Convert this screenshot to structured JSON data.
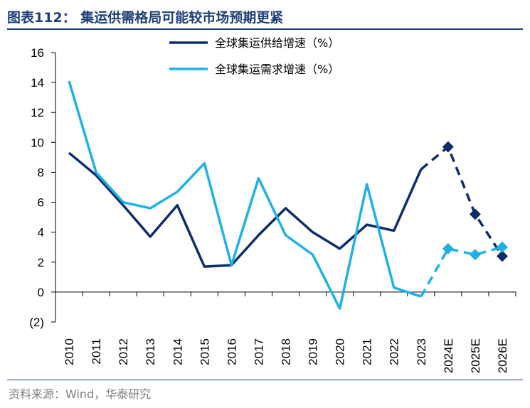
{
  "header": {
    "title": "图表112： 集运供需格局可能较市场预期更紧"
  },
  "footer": {
    "source": "资料来源：Wind，华泰研究"
  },
  "colors": {
    "supply": "#0e2d6b",
    "demand": "#1fb1e6",
    "rule": "#1f3f7a"
  },
  "chart_data": {
    "type": "line",
    "categories": [
      "2010",
      "2011",
      "2012",
      "2013",
      "2014",
      "2015",
      "2016",
      "2017",
      "2018",
      "2019",
      "2020",
      "2021",
      "2022",
      "2023",
      "2024E",
      "2025E",
      "2026E"
    ],
    "ylim": [
      -2,
      16
    ],
    "yticks": [
      -2,
      0,
      2,
      4,
      6,
      8,
      10,
      12,
      14,
      16
    ],
    "ytick_labels": [
      "(2)",
      "0",
      "2",
      "4",
      "6",
      "8",
      "10",
      "12",
      "14",
      "16"
    ],
    "forecast_start_index": 13,
    "legend_position": "top-center",
    "series": [
      {
        "name": "全球集运供给增速（%）",
        "values": [
          9.3,
          7.8,
          5.8,
          3.7,
          5.8,
          1.7,
          1.8,
          3.8,
          5.6,
          4.0,
          2.9,
          4.5,
          4.1,
          8.2,
          9.7,
          5.2,
          2.4
        ]
      },
      {
        "name": "全球集运需求增速（%）",
        "values": [
          14.1,
          8.0,
          6.0,
          5.6,
          6.7,
          8.6,
          1.8,
          7.6,
          3.8,
          2.5,
          -1.1,
          7.2,
          0.3,
          -0.3,
          2.9,
          2.5,
          3.0
        ]
      }
    ]
  }
}
